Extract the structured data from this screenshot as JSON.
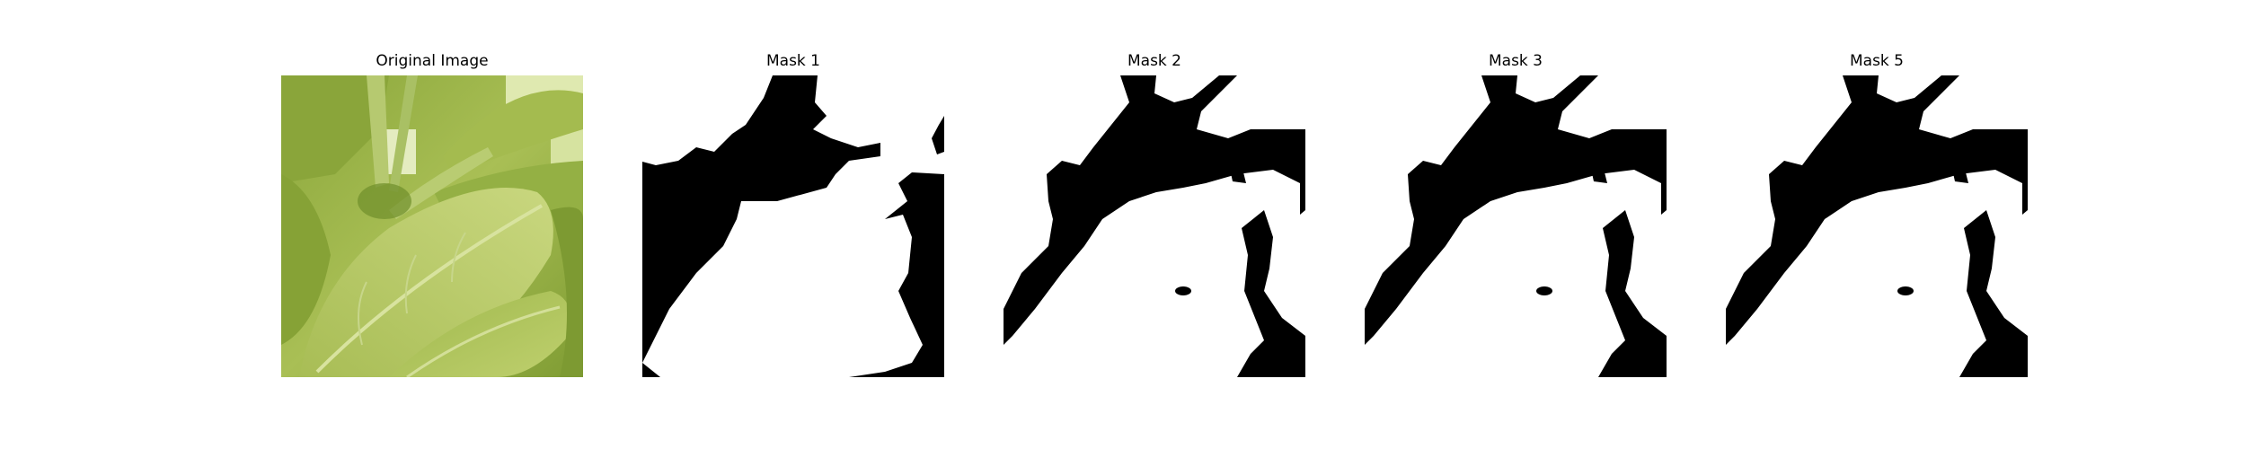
{
  "panels": [
    {
      "title": "Original Image"
    },
    {
      "title": "Mask 1"
    },
    {
      "title": "Mask 2"
    },
    {
      "title": "Mask 3"
    },
    {
      "title": "Mask 5"
    }
  ],
  "colors": {
    "background": "#ffffff",
    "mask_foreground": "#ffffff",
    "mask_background": "#000000",
    "leaf_light": "#b7c86a",
    "leaf_mid": "#9ab548",
    "leaf_dark": "#6f8f2b"
  }
}
